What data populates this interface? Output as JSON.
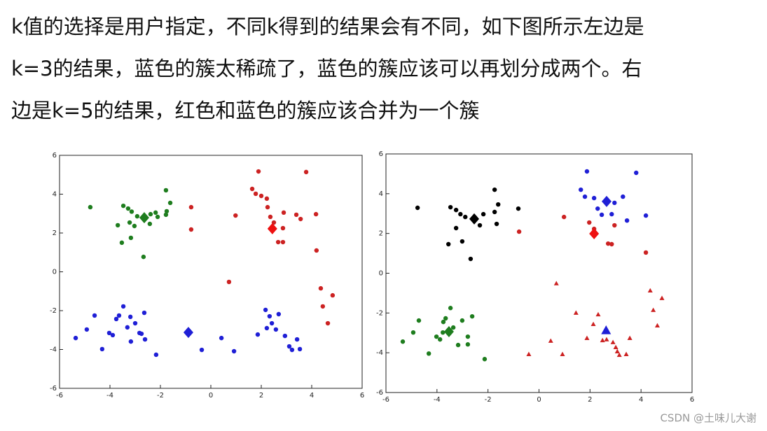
{
  "lines": [
    "k值的选择是用户指定，不同k得到的结果会有不同，如下图所示左边是",
    "k=3的结果，蓝色的簇太稀疏了，蓝色的簇应该可以再划分成两个。右",
    "边是k=5的结果，红色和蓝色的簇应该合并为一个簇"
  ],
  "watermark": "CSDN @土味儿大谢",
  "chart_data": [
    {
      "type": "scatter",
      "xlim": [
        -6,
        6
      ],
      "ylim": [
        -6,
        6
      ],
      "xticks": [
        -6,
        -4,
        -2,
        0,
        2,
        4,
        6
      ],
      "yticks": [
        -6,
        -4,
        -2,
        0,
        2,
        4,
        6
      ],
      "series": [
        {
          "color": "#1e7d1e",
          "marker": "circle",
          "x": [
            -4.78,
            -3.47,
            -3.28,
            -3.14,
            -2.92,
            -2.67,
            -2.39,
            -2.19,
            -2.11,
            -1.78,
            -1.61,
            -1.75,
            -1.78,
            -2.42,
            -3.03,
            -3.17,
            -3.53,
            -2.67,
            -3.69,
            -3.22
          ],
          "y": [
            3.33,
            3.4,
            3.26,
            3.1,
            2.86,
            2.83,
            2.97,
            3.05,
            2.83,
            4.2,
            3.55,
            3.12,
            2.94,
            2.47,
            2.36,
            1.75,
            1.5,
            0.77,
            2.4,
            2.54
          ]
        },
        {
          "color": "#cc2222",
          "marker": "circle",
          "x": [
            1.89,
            3.78,
            1.64,
            1.78,
            2,
            2.22,
            -0.78,
            0.98,
            2.25,
            2.36,
            2.89,
            2.5,
            2.86,
            3.39,
            3.56,
            4.17,
            -0.78,
            2.67,
            2.86,
            4.19,
            0.72,
            4.36,
            4.83,
            4.44,
            4.64
          ],
          "y": [
            5.17,
            5.14,
            4.27,
            4.02,
            3.91,
            3.77,
            3.33,
            2.9,
            3.33,
            2.83,
            3.05,
            2.54,
            2.25,
            2.94,
            2.72,
            2.97,
            2.18,
            1.53,
            1.53,
            1.1,
            -0.52,
            -0.85,
            -1.21,
            -1.78,
            -2.65
          ]
        },
        {
          "color": "#1f1fd6",
          "marker": "circle",
          "x": [
            -5.36,
            -4.92,
            -4.61,
            -4.31,
            -4.03,
            -3.89,
            -3.75,
            -3.64,
            -3.47,
            -3.31,
            -3.17,
            -3.19,
            -3,
            -2.83,
            -2.64,
            -2.75,
            -2.61,
            -2.17,
            -0.36,
            0.42,
            0.92,
            1.86,
            2.17,
            2.33,
            2.42,
            2.22,
            2.58,
            2.94,
            3.11,
            3.22,
            3.42,
            3.53,
            2.69
          ],
          "y": [
            -3.41,
            -2.97,
            -2.25,
            -3.98,
            -3.15,
            -3.26,
            -2.43,
            -2.25,
            -1.78,
            -2.86,
            -3.59,
            -2.32,
            -2.65,
            -3.15,
            -2.11,
            -3.19,
            -3.48,
            -4.27,
            -4.02,
            -3.41,
            -4.09,
            -3.23,
            -1.96,
            -2.29,
            -2.65,
            -2.9,
            -2.97,
            -3.3,
            -3.84,
            -4.02,
            -3.48,
            -3.98,
            -2.18
          ]
        },
        {
          "color": "#1e7d1e",
          "marker": "diamond",
          "x": [
            -2.64
          ],
          "y": [
            2.79
          ]
        },
        {
          "color": "#ee1111",
          "marker": "diamond",
          "x": [
            2.44
          ],
          "y": [
            2.22
          ]
        },
        {
          "color": "#1f1fd6",
          "marker": "diamond",
          "x": [
            -0.89
          ],
          "y": [
            -3.12
          ]
        }
      ]
    },
    {
      "type": "scatter",
      "xlim": [
        -6,
        6
      ],
      "ylim": [
        -6,
        6
      ],
      "xticks": [
        -6,
        -4,
        -2,
        0,
        2,
        4,
        6
      ],
      "yticks": [
        -6,
        -4,
        -2,
        0,
        2,
        4,
        6
      ],
      "series": [
        {
          "color": "#000000",
          "marker": "circle",
          "x": [
            -4.76,
            -3.47,
            -3.25,
            -3.08,
            -2.89,
            -2.51,
            -2.18,
            -1.74,
            -1.6,
            -1.74,
            -1.66,
            -0.81,
            -2.32,
            -3.01,
            -3.55,
            -2.68,
            -3.25
          ],
          "y": [
            3.29,
            3.32,
            3.18,
            2.97,
            2.83,
            2.8,
            2.97,
            4.2,
            3.46,
            3.08,
            2.48,
            3.25,
            2.41,
            1.6,
            1.46,
            0.72,
            2.27
          ]
        },
        {
          "color": "#cc2222",
          "marker": "circle",
          "x": [
            -0.78,
            0.98,
            1.97,
            2.16,
            2.71,
            2.85,
            2.96,
            4.19
          ],
          "y": [
            2.09,
            2.83,
            2.55,
            2.23,
            1.49,
            1.46,
            2.41,
            1.04
          ]
        },
        {
          "color": "#1f1fd6",
          "marker": "circle",
          "x": [
            1.88,
            3.81,
            1.64,
            1.8,
            2.16,
            2.3,
            2.46,
            2.85,
            3.29,
            2.96,
            3.45,
            4.19
          ],
          "y": [
            5.12,
            5.05,
            4.2,
            3.85,
            3.78,
            3.25,
            2.94,
            2.97,
            3.85,
            3.54,
            2.65,
            2.9
          ]
        },
        {
          "color": "#1e7d1e",
          "marker": "circle",
          "x": [
            -5.34,
            -4.93,
            -4.71,
            -4.32,
            -4.02,
            -3.88,
            -3.75,
            -3.66,
            -3.47,
            -3.36,
            -3.17,
            -3.01,
            -2.79,
            -2.79,
            -2.13,
            -2.62,
            -3.77
          ],
          "y": [
            -3.44,
            -2.98,
            -2.38,
            -4.04,
            -3.19,
            -3.33,
            -2.45,
            -2.27,
            -1.75,
            -2.73,
            -3.61,
            -2.38,
            -3.19,
            -3.58,
            -4.32,
            -2.17,
            -2.98
          ]
        },
        {
          "color": "#cc2222",
          "marker": "triangle",
          "x": [
            0.68,
            4.36,
            4.82,
            4.48,
            4.64,
            0.46,
            -0.4,
            0.92,
            1.45,
            1.88,
            2.13,
            2.32,
            2.65,
            2.9,
            3.01,
            3.07,
            3.15,
            3.42,
            3.56,
            2.49
          ],
          "y": [
            -0.51,
            -0.87,
            -1.25,
            -1.85,
            -2.63,
            -3.4,
            -4.07,
            -4.07,
            -1.99,
            -3.26,
            -2.56,
            -2.07,
            -3.33,
            -3.47,
            -3.72,
            -3.93,
            -4.11,
            -4.07,
            -3.26,
            -3.37
          ]
        },
        {
          "color": "#000000",
          "marker": "diamond",
          "x": [
            -2.54
          ],
          "y": [
            2.73
          ]
        },
        {
          "color": "#ee1111",
          "marker": "diamond",
          "x": [
            2.16
          ],
          "y": [
            1.99
          ]
        },
        {
          "color": "#1f1fd6",
          "marker": "diamond",
          "x": [
            2.65
          ],
          "y": [
            3.61
          ]
        },
        {
          "color": "#1e7d1e",
          "marker": "diamond",
          "x": [
            -3.53
          ],
          "y": [
            -2.94
          ]
        },
        {
          "color": "#1f1fd6",
          "marker": "triangle-big",
          "x": [
            2.63
          ],
          "y": [
            -2.87
          ]
        }
      ]
    }
  ]
}
